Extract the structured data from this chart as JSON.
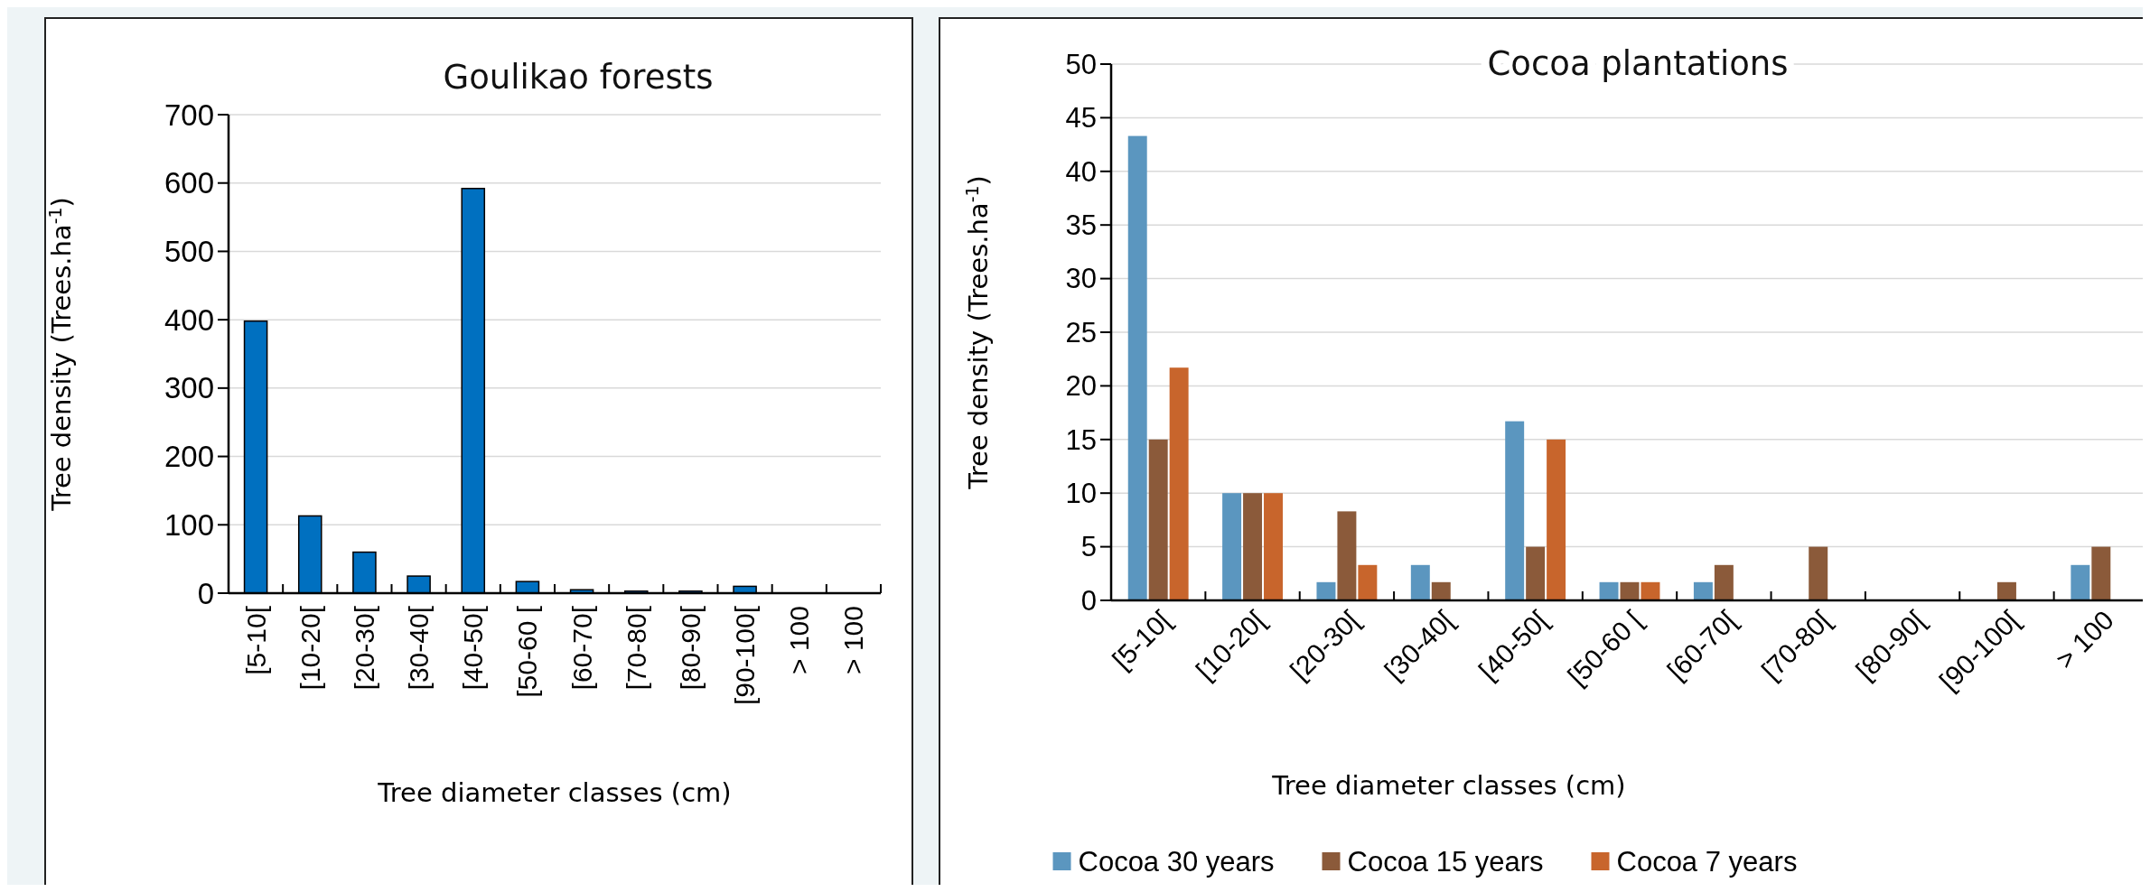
{
  "chart_data": [
    {
      "type": "bar",
      "title": "Goulikao forests",
      "xlabel": "Tree diameter classes (cm)",
      "ylabel": "Tree density (Trees.ha$^{-1}$)",
      "categories": [
        "[5-10[",
        "[10-20[",
        "[20-30[",
        "[30-40[",
        "[40-50[",
        "[50-60 [",
        "[60-70[",
        "[70-80[",
        "[80-90[",
        "[90-100[",
        "> 100",
        "> 100"
      ],
      "values": [
        398,
        113,
        60,
        25,
        592,
        17,
        5,
        3,
        3,
        10,
        0,
        0
      ],
      "color": "#0070c0",
      "ylim": [
        0,
        700
      ],
      "yticks": [
        0,
        100,
        200,
        300,
        400,
        500,
        600,
        700
      ],
      "grid": "y"
    },
    {
      "type": "bar",
      "title": "Cocoa plantations",
      "xlabel": "Tree diameter classes (cm)",
      "ylabel": "Tree density (Trees.ha$^{-1}$)",
      "categories": [
        "[5-10[",
        "[10-20[",
        "[20-30[",
        "[30-40[",
        "[40-50[",
        "[50-60 [",
        "[60-70[",
        "[70-80[",
        "[80-90[",
        "[90-100[",
        "> 100"
      ],
      "series": [
        {
          "name": "Cocoa 30 years",
          "color": "#5b96bf",
          "values": [
            43.3,
            10,
            1.7,
            3.3,
            16.7,
            1.7,
            1.7,
            0,
            0,
            0,
            3.3
          ]
        },
        {
          "name": "Cocoa 15 years",
          "color": "#8b5a3a",
          "values": [
            15,
            10,
            8.3,
            1.7,
            5,
            1.7,
            3.3,
            5,
            0,
            1.7,
            5
          ]
        },
        {
          "name": "Cocoa 7 years",
          "color": "#c8652c",
          "values": [
            21.7,
            10,
            3.3,
            0,
            15,
            1.7,
            0,
            0,
            0,
            0,
            null
          ]
        }
      ],
      "ylim": [
        0,
        50
      ],
      "yticks": [
        0,
        5,
        10,
        15,
        20,
        25,
        30,
        35,
        40,
        45,
        50
      ],
      "grid": "y",
      "legend": "bottom"
    }
  ]
}
